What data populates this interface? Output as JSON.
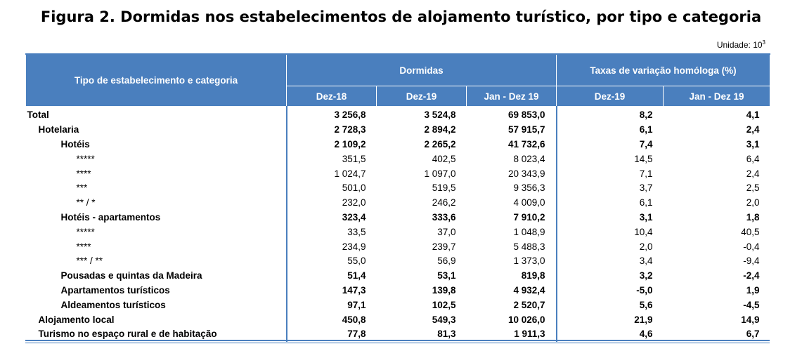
{
  "title": "Figura 2. Dormidas nos estabelecimentos de alojamento turístico, por tipo e categoria",
  "unit": {
    "label": "Unidade: 10",
    "exponent": "3"
  },
  "header": {
    "row_label": "Tipo de estabelecimento e categoria",
    "group_dormidas": "Dormidas",
    "group_taxas": "Taxas de variação homóloga (%)",
    "columns": [
      "Dez-18",
      "Dez-19",
      "Jan - Dez 19",
      "Dez-19",
      "Jan - Dez 19"
    ]
  },
  "rows": [
    {
      "label": "Total",
      "level": 0,
      "bold": true,
      "values": [
        "3 256,8",
        "3 524,8",
        "69 853,0",
        "8,2",
        "4,1"
      ]
    },
    {
      "label": "Hotelaria",
      "level": 1,
      "bold": true,
      "values": [
        "2 728,3",
        "2 894,2",
        "57 915,7",
        "6,1",
        "2,4"
      ]
    },
    {
      "label": "Hotéis",
      "level": 2,
      "bold": true,
      "values": [
        "2 109,2",
        "2 265,2",
        "41 732,6",
        "7,4",
        "3,1"
      ]
    },
    {
      "label": "*****",
      "level": 3,
      "bold": false,
      "values": [
        "351,5",
        "402,5",
        "8 023,4",
        "14,5",
        "6,4"
      ]
    },
    {
      "label": "****",
      "level": 3,
      "bold": false,
      "values": [
        "1 024,7",
        "1 097,0",
        "20 343,9",
        "7,1",
        "2,4"
      ]
    },
    {
      "label": "***",
      "level": 3,
      "bold": false,
      "values": [
        "501,0",
        "519,5",
        "9 356,3",
        "3,7",
        "2,5"
      ]
    },
    {
      "label": "** / *",
      "level": 3,
      "bold": false,
      "values": [
        "232,0",
        "246,2",
        "4 009,0",
        "6,1",
        "2,0"
      ]
    },
    {
      "label": "Hotéis - apartamentos",
      "level": 2,
      "bold": true,
      "values": [
        "323,4",
        "333,6",
        "7 910,2",
        "3,1",
        "1,8"
      ]
    },
    {
      "label": "*****",
      "level": 3,
      "bold": false,
      "values": [
        "33,5",
        "37,0",
        "1 048,9",
        "10,4",
        "40,5"
      ]
    },
    {
      "label": "****",
      "level": 3,
      "bold": false,
      "values": [
        "234,9",
        "239,7",
        "5 488,3",
        "2,0",
        "-0,4"
      ]
    },
    {
      "label": "*** / **",
      "level": 3,
      "bold": false,
      "values": [
        "55,0",
        "56,9",
        "1 373,0",
        "3,4",
        "-9,4"
      ]
    },
    {
      "label": "Pousadas e quintas da Madeira",
      "level": 2,
      "bold": true,
      "values": [
        "51,4",
        "53,1",
        "819,8",
        "3,2",
        "-2,4"
      ]
    },
    {
      "label": "Apartamentos turísticos",
      "level": 2,
      "bold": true,
      "values": [
        "147,3",
        "139,8",
        "4 932,4",
        "-5,0",
        "1,9"
      ]
    },
    {
      "label": "Aldeamentos turísticos",
      "level": 2,
      "bold": true,
      "values": [
        "97,1",
        "102,5",
        "2 520,7",
        "5,6",
        "-4,5"
      ]
    },
    {
      "label": "Alojamento local",
      "level": 1,
      "bold": true,
      "values": [
        "450,8",
        "549,3",
        "10 026,0",
        "21,9",
        "14,9"
      ]
    },
    {
      "label": "Turismo no espaço rural e de habitação",
      "level": 1,
      "bold": true,
      "values": [
        "77,8",
        "81,3",
        "1 911,3",
        "4,6",
        "6,7"
      ]
    }
  ]
}
